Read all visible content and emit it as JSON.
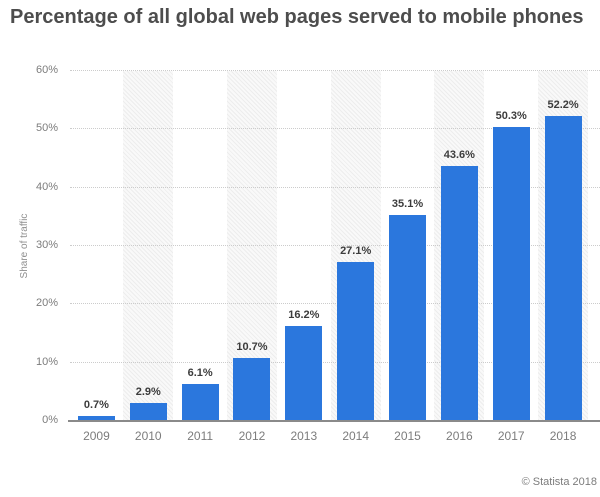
{
  "title": "Percentage of all global web pages served to mobile phones",
  "footer": {
    "credit": "© Statista 2018"
  },
  "chart_data": {
    "type": "bar",
    "title": "Percentage of all global web pages served to mobile phones",
    "categories": [
      "2009",
      "2010",
      "2011",
      "2012",
      "2013",
      "2014",
      "2015",
      "2016",
      "2017",
      "2018"
    ],
    "values": [
      0.7,
      2.9,
      6.1,
      10.7,
      16.2,
      27.1,
      35.1,
      43.6,
      50.3,
      52.2
    ],
    "value_labels": [
      "0.7%",
      "2.9%",
      "6.1%",
      "10.7%",
      "16.2%",
      "27.1%",
      "35.1%",
      "43.6%",
      "50.3%",
      "52.2%"
    ],
    "xlabel": "",
    "ylabel": "Share of traffic",
    "ylim": [
      0,
      60
    ],
    "yticks": [
      0,
      10,
      20,
      30,
      40,
      50,
      60
    ],
    "ytick_labels": [
      "0%",
      "10%",
      "20%",
      "30%",
      "40%",
      "50%",
      "60%"
    ],
    "grid": "horizontal-dotted",
    "legend": "none",
    "bar_color": "#2b77dd",
    "band_color": "#f0f0f0",
    "banded_categories": [
      "2010",
      "2012",
      "2014",
      "2016",
      "2018"
    ]
  }
}
